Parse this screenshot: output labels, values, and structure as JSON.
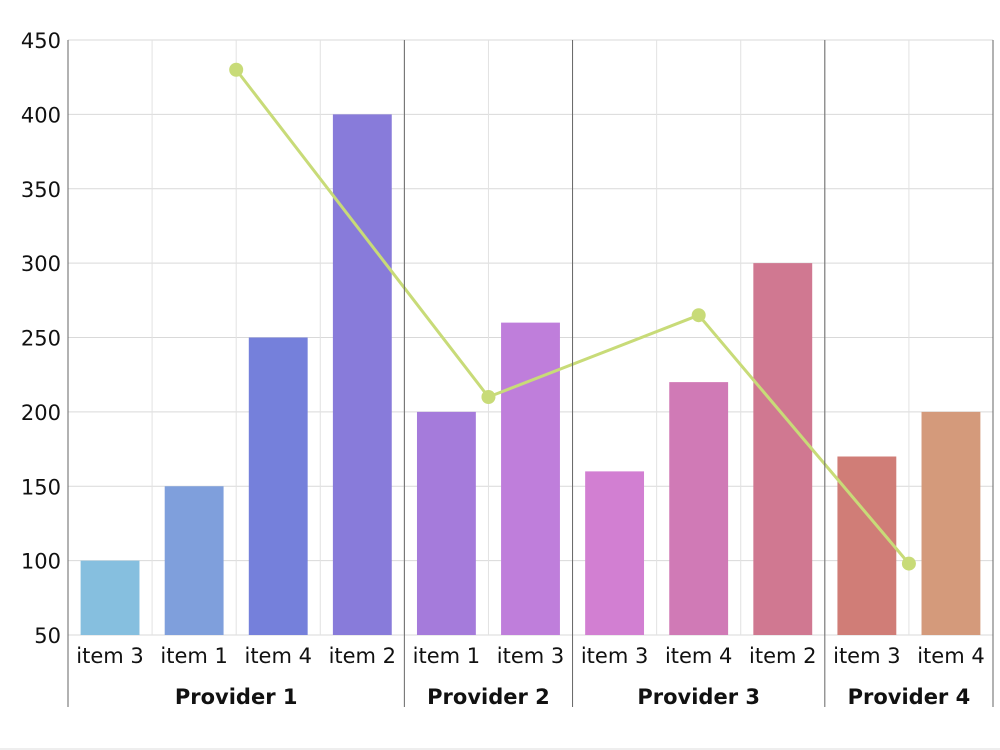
{
  "chart_data": {
    "type": "bar",
    "title": "",
    "xlabel": "",
    "ylabel": "",
    "ylim": [
      50,
      450
    ],
    "yticks": [
      50,
      100,
      150,
      200,
      250,
      300,
      350,
      400,
      450
    ],
    "grid": true,
    "legend": "none",
    "groups": [
      {
        "label": "Provider 1",
        "items": [
          {
            "category": "item 3",
            "value": 100,
            "color": "#86bfdf"
          },
          {
            "category": "item 1",
            "value": 150,
            "color": "#7f9fdc"
          },
          {
            "category": "item 4",
            "value": 250,
            "color": "#7580db"
          },
          {
            "category": "item 2",
            "value": 400,
            "color": "#887bda"
          }
        ]
      },
      {
        "label": "Provider 2",
        "items": [
          {
            "category": "item 1",
            "value": 200,
            "color": "#a57bdb"
          },
          {
            "category": "item 3",
            "value": 260,
            "color": "#bf7edb"
          }
        ]
      },
      {
        "label": "Provider 3",
        "items": [
          {
            "category": "item 3",
            "value": 160,
            "color": "#d27fd2"
          },
          {
            "category": "item 4",
            "value": 220,
            "color": "#d07ab6"
          },
          {
            "category": "item 2",
            "value": 300,
            "color": "#d07891"
          }
        ]
      },
      {
        "label": "Provider 4",
        "items": [
          {
            "category": "item 3",
            "value": 170,
            "color": "#d07d77"
          },
          {
            "category": "item 4",
            "value": 200,
            "color": "#d49a7b"
          }
        ]
      }
    ],
    "line_series": {
      "color": "#c8db78",
      "values": [
        430,
        210,
        265,
        98
      ]
    }
  }
}
